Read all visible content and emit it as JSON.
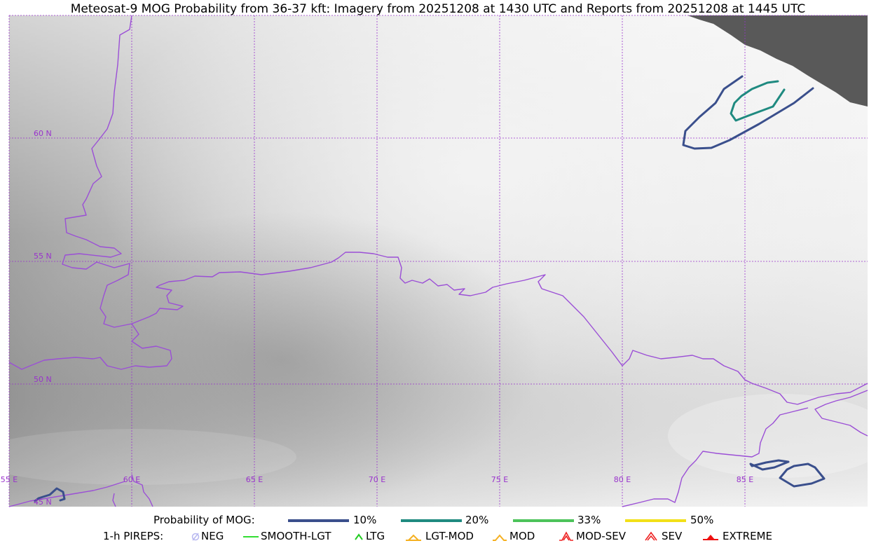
{
  "title": "Meteosat-9 MOG Probability from 36-37 kft: Imagery from 20251208 at 1430 UTC and Reports from 20251208 at 1445 UTC",
  "map": {
    "lat_labels": [
      "60 N",
      "55 N",
      "50 N",
      "45 N"
    ],
    "lon_labels": [
      "55 E",
      "60 E",
      "65 E",
      "70 E",
      "75 E",
      "80 E",
      "85 E"
    ],
    "graticule_color": "#9933cc",
    "border_color": "#9b4fd6",
    "no_data_color": "#595959"
  },
  "legend": {
    "probability": {
      "label": "Probability of MOG:",
      "items": [
        {
          "label": "10%",
          "color": "#3a4f8c"
        },
        {
          "label": "20%",
          "color": "#1f8a80"
        },
        {
          "label": "33%",
          "color": "#4cc35a"
        },
        {
          "label": "50%",
          "color": "#f2e018"
        }
      ]
    },
    "pireps": {
      "label": "1-h PIREPS:",
      "items": [
        {
          "label": "NEG",
          "icon": "neg-pirep-icon",
          "color": "#b8b8f0"
        },
        {
          "label": "SMOOTH-LGT",
          "icon": "smooth-lgt-pirep-icon",
          "color": "#33dd33"
        },
        {
          "label": "LTG",
          "icon": "ltg-pirep-icon",
          "color": "#22cc22"
        },
        {
          "label": "LGT-MOD",
          "icon": "lgt-mod-pirep-icon",
          "color": "#f5b020"
        },
        {
          "label": "MOD",
          "icon": "mod-pirep-icon",
          "color": "#f5b020"
        },
        {
          "label": "MOD-SEV",
          "icon": "mod-sev-pirep-icon",
          "color": "#ee2222"
        },
        {
          "label": "SEV",
          "icon": "sev-pirep-icon",
          "color": "#ee2222"
        },
        {
          "label": "EXTREME",
          "icon": "extreme-pirep-icon",
          "color": "#ee1111"
        }
      ]
    }
  }
}
